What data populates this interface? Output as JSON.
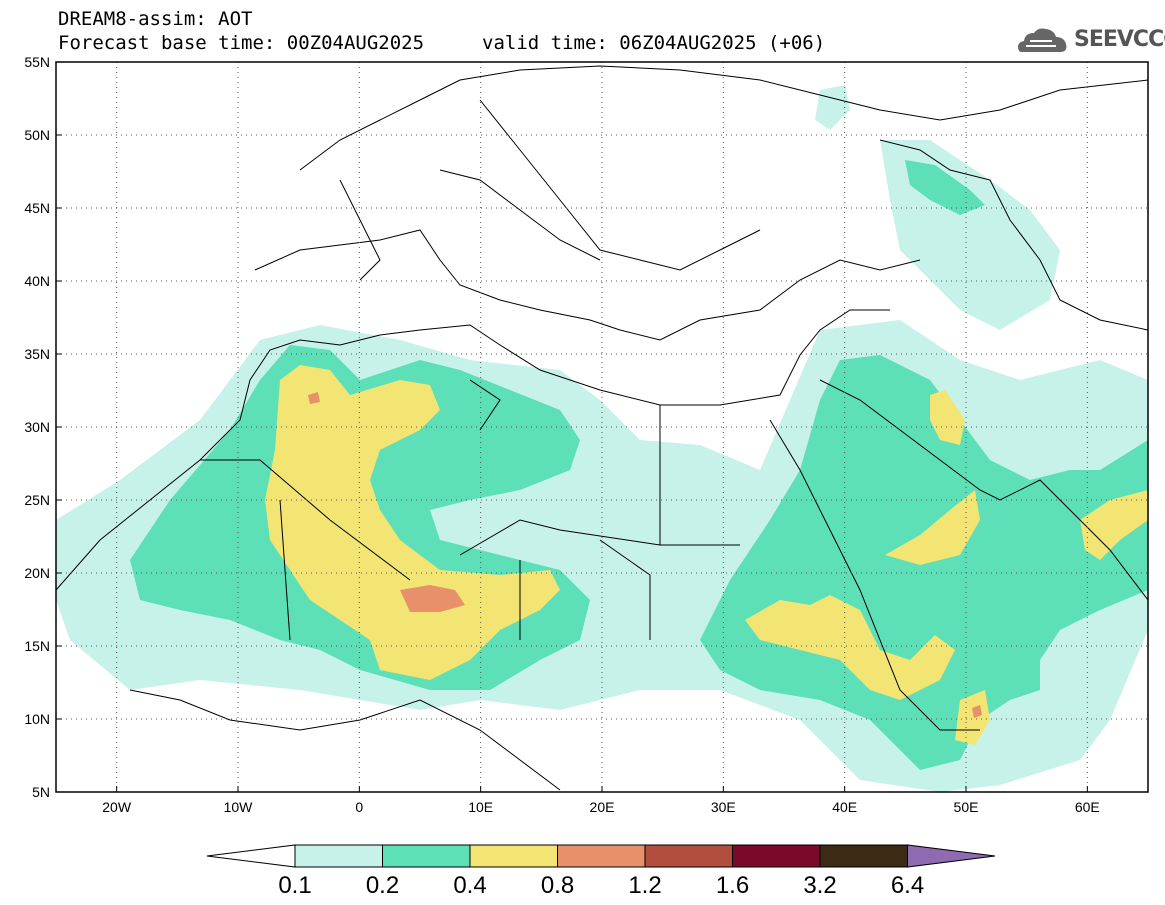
{
  "header": {
    "title": "DREAM8-assim: AOT",
    "base_time": "Forecast base time: 00Z04AUG2025",
    "valid_time": "valid time: 06Z04AUG2025 (+06)",
    "logo": "SEEVCCC"
  },
  "map": {
    "lat_range": [
      5,
      55
    ],
    "lon_range": [
      -25,
      65
    ],
    "lat_ticks": [
      {
        "v": 55,
        "t": "55N"
      },
      {
        "v": 50,
        "t": "50N"
      },
      {
        "v": 45,
        "t": "45N"
      },
      {
        "v": 40,
        "t": "40N"
      },
      {
        "v": 35,
        "t": "35N"
      },
      {
        "v": 30,
        "t": "30N"
      },
      {
        "v": 25,
        "t": "25N"
      },
      {
        "v": 20,
        "t": "20N"
      },
      {
        "v": 15,
        "t": "15N"
      },
      {
        "v": 10,
        "t": "10N"
      },
      {
        "v": 5,
        "t": "5N"
      }
    ],
    "lon_ticks": [
      {
        "v": -20,
        "t": "20W"
      },
      {
        "v": -10,
        "t": "10W"
      },
      {
        "v": 0,
        "t": "0"
      },
      {
        "v": 10,
        "t": "10E"
      },
      {
        "v": 20,
        "t": "20E"
      },
      {
        "v": 30,
        "t": "30E"
      },
      {
        "v": 40,
        "t": "40E"
      },
      {
        "v": 50,
        "t": "50E"
      },
      {
        "v": 60,
        "t": "60E"
      }
    ],
    "grid": "dotted"
  },
  "colorbar": {
    "labels": [
      "0.1",
      "0.2",
      "0.4",
      "0.8",
      "1.2",
      "1.6",
      "3.2",
      "6.4"
    ],
    "colors": [
      "#c6f2ea",
      "#5ddfb8",
      "#f3e574",
      "#e8906a",
      "#b24e3e",
      "#7a0a2a",
      "#3c2a14",
      "#8e6bb0"
    ]
  },
  "icons": [
    "cloud-logo-icon"
  ]
}
